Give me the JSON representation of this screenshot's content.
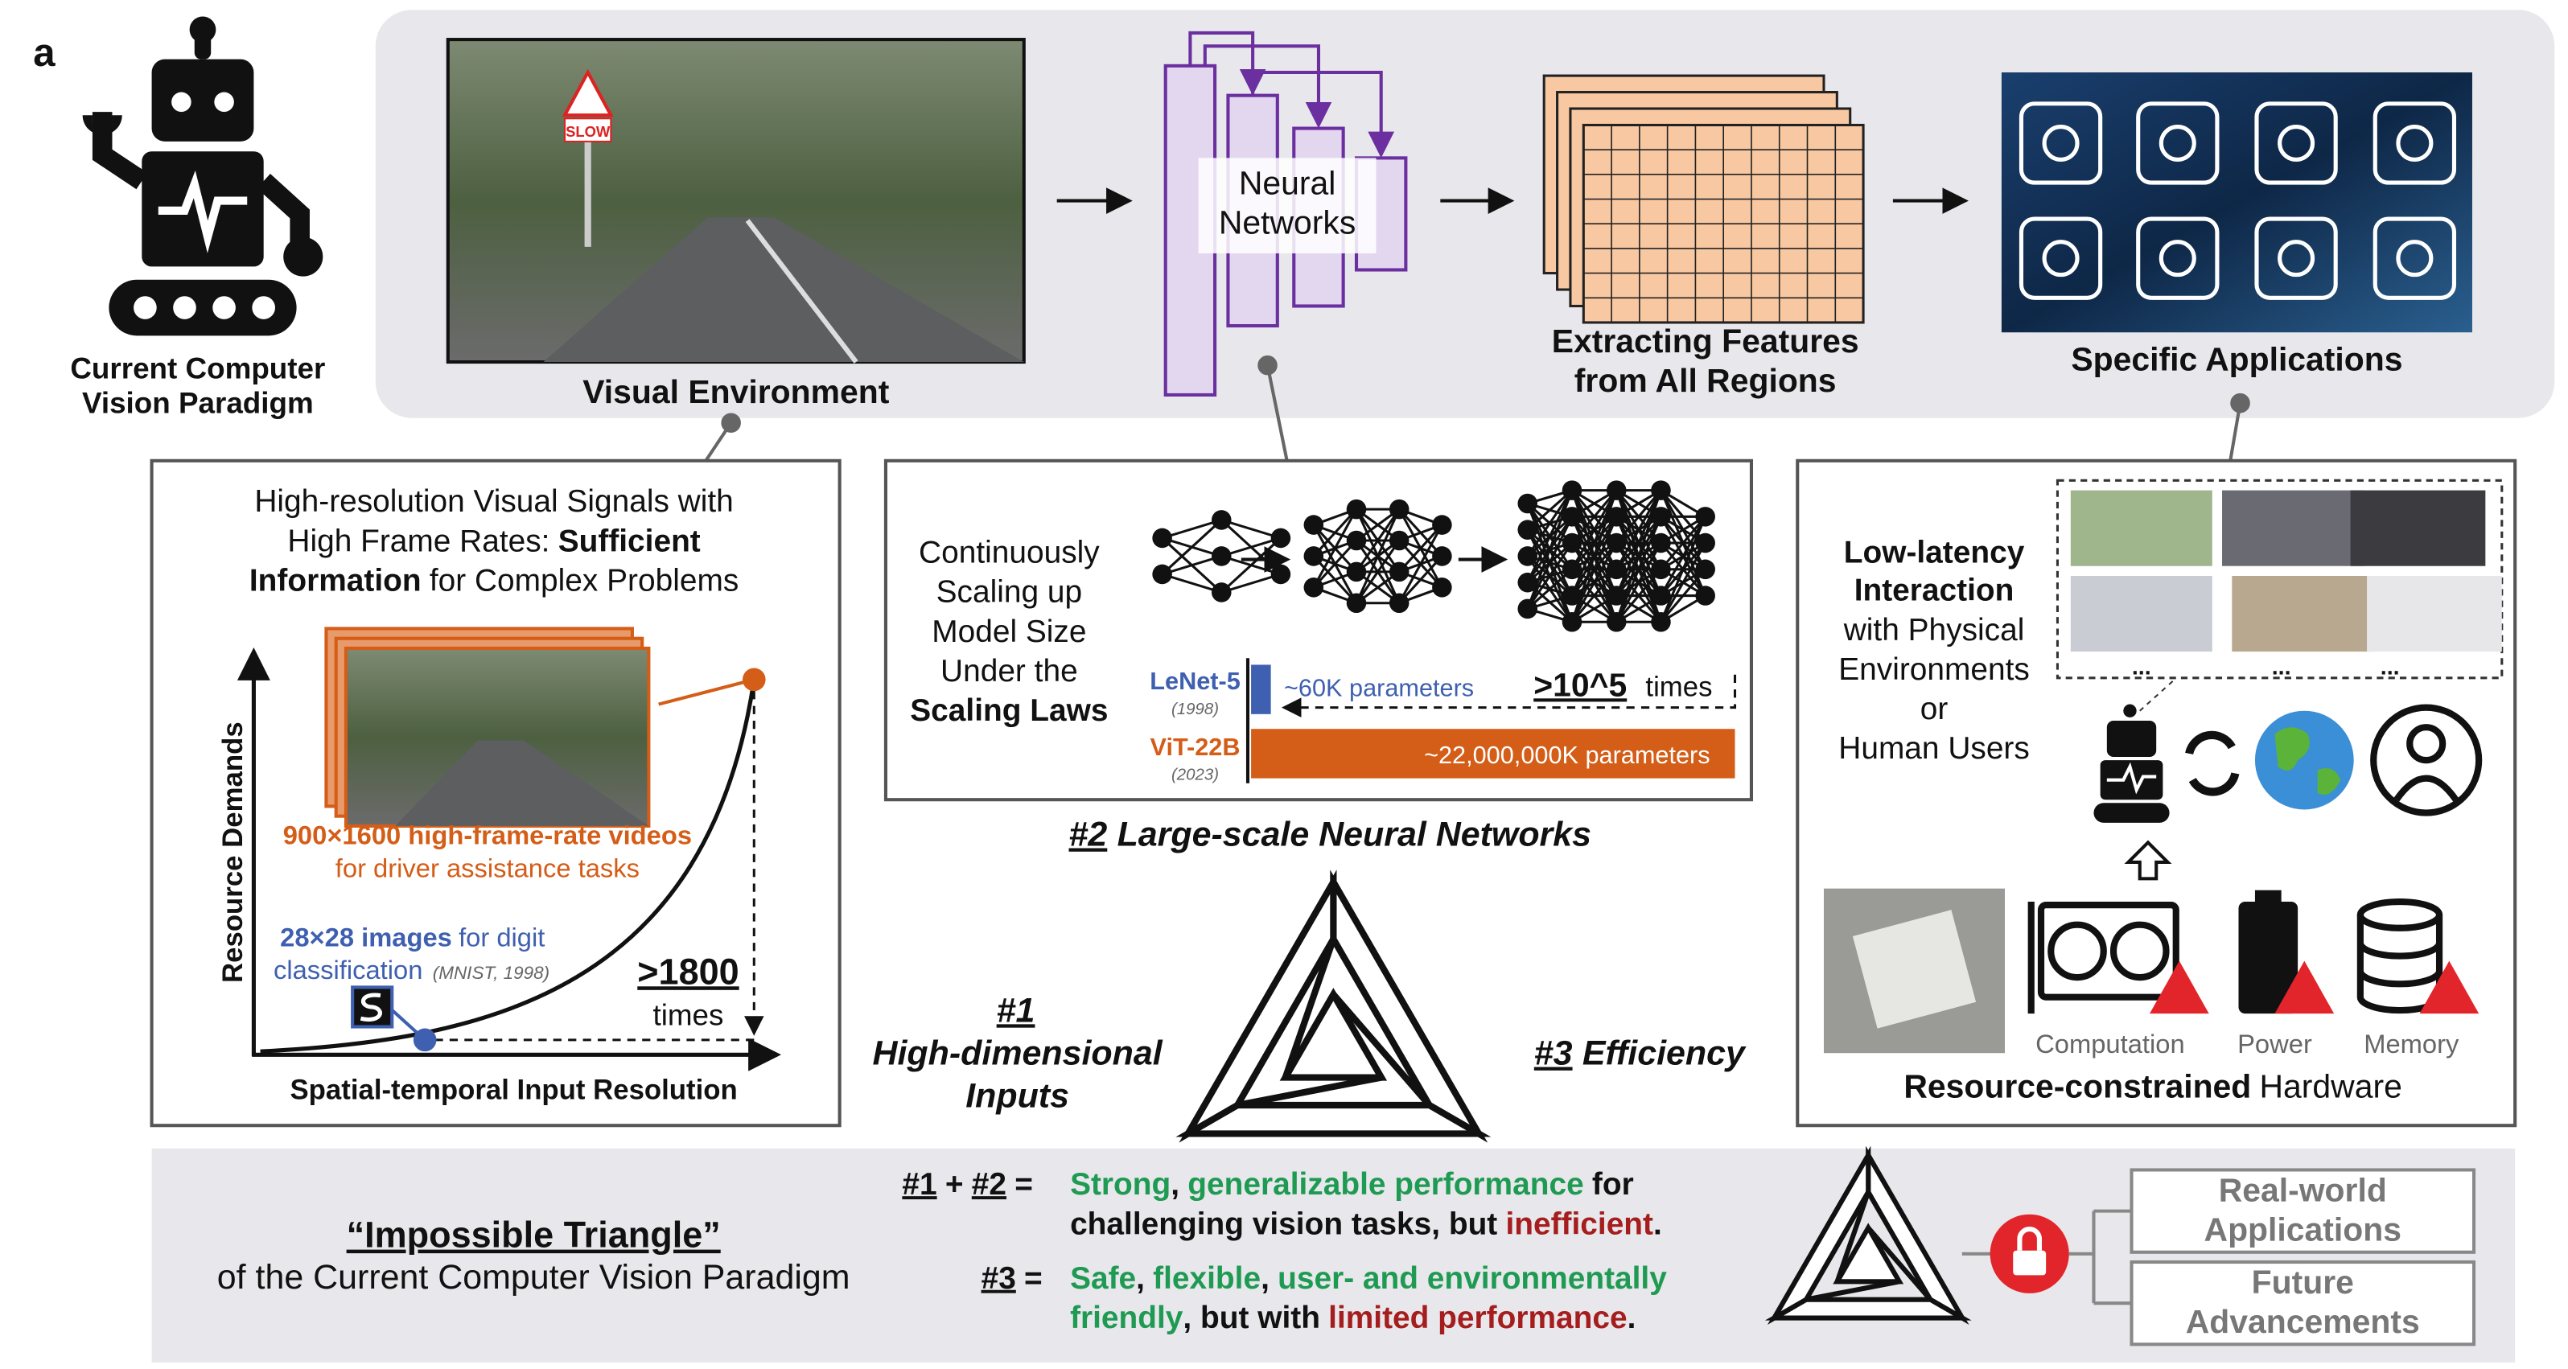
{
  "panel_label": "a",
  "robot_caption": [
    "Current Computer",
    "Vision Paradigm"
  ],
  "pipeline": {
    "visual_environment": "Visual Environment",
    "sign": "SLOW",
    "neural_networks": [
      "Neural",
      "Networks"
    ],
    "features": [
      "Extracting Features",
      "from All Regions"
    ],
    "applications": "Specific Applications"
  },
  "resolution": {
    "title": [
      "High-resolution Visual Signals with",
      "High Frame Rates:",
      "Sufficient",
      "Information",
      "for Complex Problems"
    ],
    "y_axis": "Resource Demands",
    "x_axis": "Spatial-temporal Input Resolution",
    "video": [
      "900×1600 high-frame-rate videos",
      "for driver assistance tasks"
    ],
    "digits": [
      "28×28 images",
      "for digit",
      "classification",
      "(MNIST, 1998)"
    ],
    "ratio": [
      ">1800",
      "times"
    ]
  },
  "networks": {
    "text": [
      "Continuously",
      "Scaling up",
      "Model Size",
      "Under the",
      "Scaling Laws"
    ],
    "lenet": [
      "LeNet-5",
      "(1998)",
      "~60K parameters"
    ],
    "vit": [
      "ViT-22B",
      "(2023)",
      "~22,000,000K parameters"
    ],
    "ratio": [
      ">10^5",
      "times"
    ],
    "caption": [
      "#2",
      "Large-scale Neural Networks"
    ]
  },
  "triangle": {
    "inputs": [
      "#1",
      "High-dimensional",
      "Inputs"
    ],
    "efficiency": [
      "#3",
      "Efficiency"
    ]
  },
  "hardware": {
    "text": [
      "Low-latency",
      "Interaction",
      "with Physical",
      "Environments",
      "or",
      "Human Users"
    ],
    "ellipses": [
      "...",
      "...",
      "..."
    ],
    "labels": [
      "Computation",
      "Power",
      "Memory"
    ],
    "title": [
      "Resource-constrained",
      "Hardware"
    ]
  },
  "summary": {
    "title": [
      "“Impossible Triangle”",
      "of the Current Computer Vision Paradigm"
    ],
    "row1": [
      "#1",
      "+",
      "#2",
      "=",
      "Strong",
      ",",
      "generalizable performance",
      "for",
      "challenging vision tasks, but",
      "inefficient",
      "."
    ],
    "row2": [
      "#3",
      "=",
      "Safe",
      ",",
      "flexible",
      ",",
      "user- and environmentally",
      "friendly",
      ", but with",
      "limited performance",
      "."
    ],
    "outcomes": [
      [
        "Real-world",
        "Applications"
      ],
      [
        "Future",
        "Advancements"
      ]
    ]
  }
}
